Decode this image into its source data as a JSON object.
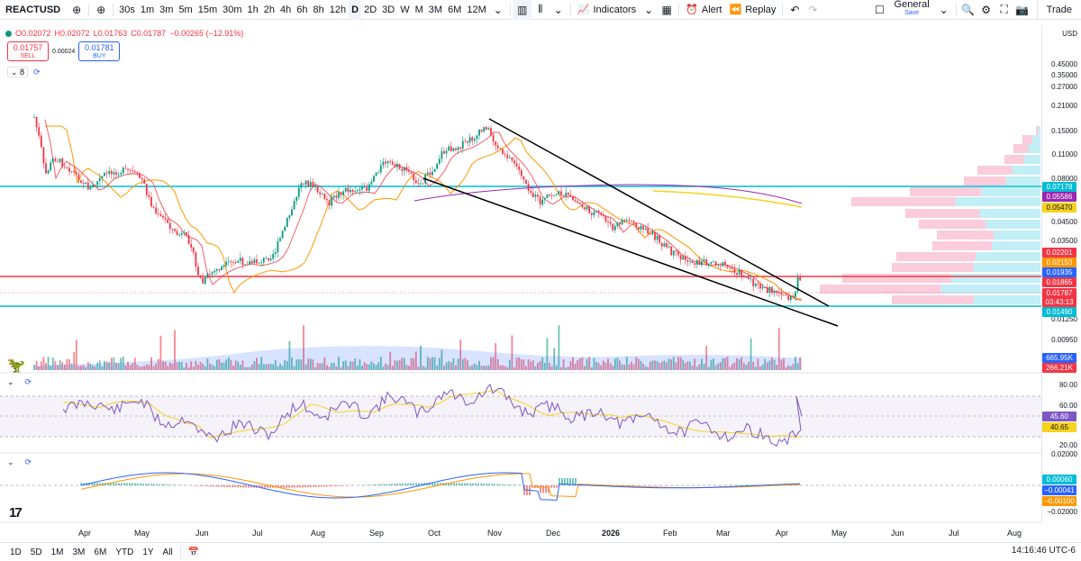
{
  "toolbar": {
    "symbol": "REACTUSD",
    "timeframes": [
      "30s",
      "1m",
      "3m",
      "5m",
      "15m",
      "30m",
      "1h",
      "2h",
      "4h",
      "6h",
      "8h",
      "12h",
      "D",
      "2D",
      "3D",
      "W",
      "M",
      "3M",
      "6M",
      "12M"
    ],
    "active_timeframe": "D",
    "indicators_label": "Indicators",
    "alert_label": "Alert",
    "replay_label": "Replay",
    "layout_name": "General",
    "layout_save": "Save",
    "trade_label": "Trade"
  },
  "legend": {
    "open": "O0.02072",
    "high": "H0.02072",
    "low": "L0.01763",
    "close": "C0.01787",
    "change": "−0.00265 (−12.91%)",
    "sell_price": "0.01757",
    "sell_label": "SELL",
    "spread": "0.00024",
    "buy_price": "0.01781",
    "buy_label": "BUY",
    "indicator_count": "8"
  },
  "price_scale": {
    "currency": "USD",
    "labels": [
      {
        "v": "0.45000",
        "y": 72
      },
      {
        "v": "0.35000",
        "y": 84
      },
      {
        "v": "0.27000",
        "y": 97
      },
      {
        "v": "0.21000",
        "y": 118
      },
      {
        "v": "0.15000",
        "y": 146
      },
      {
        "v": "0.11000",
        "y": 172
      },
      {
        "v": "0.08000",
        "y": 199
      },
      {
        "v": "0.04500",
        "y": 247
      },
      {
        "v": "0.03500",
        "y": 268
      },
      {
        "v": "0.01250",
        "y": 355
      },
      {
        "v": "0.00950",
        "y": 378
      }
    ],
    "tags": [
      {
        "v": "0.07178",
        "bg": "#00bcd4",
        "y": 207
      },
      {
        "v": "0.05586",
        "bg": "#9c27b0",
        "y": 218
      },
      {
        "v": "0.05470",
        "bg": "#f7d21e",
        "y": 230,
        "fg": "#131722"
      },
      {
        "v": "0.02201",
        "bg": "#f23645",
        "y": 280
      },
      {
        "v": "0.02153",
        "bg": "#ff9800",
        "y": 291
      },
      {
        "v": "0.01935",
        "bg": "#2962ff",
        "y": 302
      },
      {
        "v": "0.01865",
        "bg": "#f23645",
        "y": 313
      },
      {
        "v": "0.01787",
        "bg": "#f23645",
        "y": 325
      },
      {
        "v": "03:43:13",
        "bg": "#f23645",
        "y": 335
      },
      {
        "v": "0.01490",
        "bg": "#00bcd4",
        "y": 346
      },
      {
        "v": "665.95K",
        "bg": "#2962ff",
        "y": 397
      },
      {
        "v": "266.21K",
        "bg": "#f23645",
        "y": 408
      }
    ]
  },
  "rsi": {
    "labels": [
      {
        "v": "80.00",
        "y": 428
      },
      {
        "v": "60.00",
        "y": 451
      },
      {
        "v": "20.00",
        "y": 495
      }
    ],
    "tags": [
      {
        "v": "45.60",
        "bg": "#7e57c2",
        "y": 462
      },
      {
        "v": "40.65",
        "bg": "#f7d21e",
        "y": 474,
        "fg": "#131722"
      }
    ]
  },
  "macd": {
    "labels": [
      {
        "v": "0.02000",
        "y": 505
      },
      {
        "v": "−0.02000",
        "y": 569
      }
    ],
    "tags": [
      {
        "v": "0.00060",
        "bg": "#00bcd4",
        "y": 532
      },
      {
        "v": "−0.00041",
        "bg": "#2962ff",
        "y": 544
      },
      {
        "v": "−0.00100",
        "bg": "#ff9800",
        "y": 556
      }
    ]
  },
  "time_axis": [
    {
      "label": "Apr",
      "x": 95
    },
    {
      "label": "May",
      "x": 157
    },
    {
      "label": "Jun",
      "x": 225
    },
    {
      "label": "Jul",
      "x": 288
    },
    {
      "label": "Aug",
      "x": 353
    },
    {
      "label": "Sep",
      "x": 418
    },
    {
      "label": "Oct",
      "x": 483
    },
    {
      "label": "Nov",
      "x": 549
    },
    {
      "label": "Dec",
      "x": 614
    },
    {
      "label": "2026",
      "x": 676,
      "bold": true
    },
    {
      "label": "Feb",
      "x": 744
    },
    {
      "label": "Mar",
      "x": 803
    },
    {
      "label": "Apr",
      "x": 869
    },
    {
      "label": "May",
      "x": 931
    },
    {
      "label": "Jun",
      "x": 997
    },
    {
      "label": "Jul",
      "x": 1061
    },
    {
      "label": "Aug",
      "x": 1126
    }
  ],
  "bottom": {
    "ranges": [
      "1D",
      "5D",
      "1M",
      "3M",
      "6M",
      "YTD",
      "1Y",
      "All"
    ],
    "clock": "14:16:46 UTC-6"
  },
  "colors": {
    "up": "#089981",
    "down": "#f23645",
    "cyan_level": "#00bcd4",
    "red_level": "#f23645",
    "ema_fast": "#f23645",
    "ema_slow": "#ff9800",
    "rsi": "#7e57c2"
  }
}
